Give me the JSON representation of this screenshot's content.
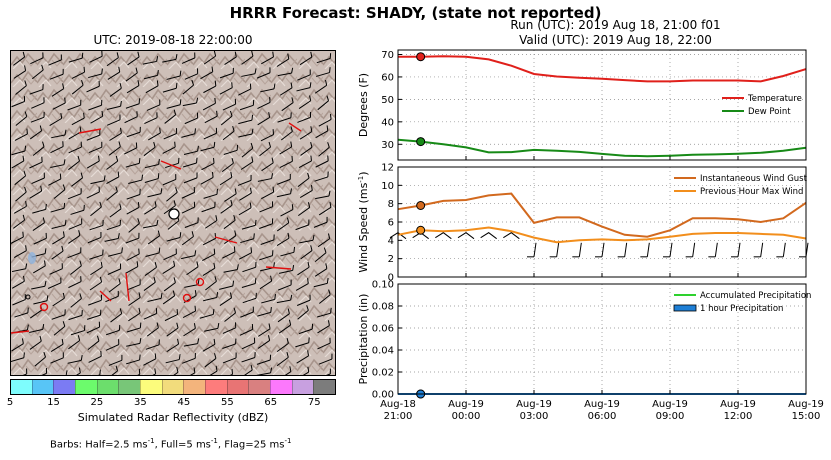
{
  "suptitle": "HRRR Forecast: SHADY, (state not reported)",
  "map": {
    "title": "UTC: 2019-08-18 22:00:00",
    "colorbar_ticks": [
      "5",
      "15",
      "25",
      "35",
      "45",
      "55",
      "65",
      "75"
    ],
    "colorbar_label": "Simulated Radar Reflectivity (dBZ)",
    "colorbar_colors": [
      "#7efdfd",
      "#58c5f6",
      "#7b7bf3",
      "#6cfb6c",
      "#6cde6c",
      "#78c678",
      "#fcfc7c",
      "#f2dc7c",
      "#f3b47c",
      "#fd7c7c",
      "#e87474",
      "#d98080",
      "#fc78fc",
      "#c8a0e0",
      "#7c7c7c"
    ],
    "barbs_note": "Barbs: Half=2.5 ms",
    "barbs_note_sup": "-1",
    "barbs_note_rest": ", Full=5 ms",
    "barbs_note_sup2": "-1",
    "barbs_note_tail": ", Flag=25 ms",
    "barbs_note_sup3": "-1"
  },
  "header": {
    "run": "Run (UTC): 2019 Aug 18, 21:00 f01",
    "valid": "Valid (UTC): 2019 Aug 18, 22:00"
  },
  "chart_data": [
    {
      "type": "line",
      "title": "",
      "ylabel": "Degrees (F)",
      "ylim": [
        23,
        72
      ],
      "yticks": [
        30,
        40,
        50,
        60,
        70
      ],
      "x": [
        "2019-08-18 21:00",
        "2019-08-18 22:00",
        "2019-08-18 23:00",
        "2019-08-19 00:00",
        "2019-08-19 01:00",
        "2019-08-19 02:00",
        "2019-08-19 03:00",
        "2019-08-19 04:00",
        "2019-08-19 05:00",
        "2019-08-19 06:00",
        "2019-08-19 07:00",
        "2019-08-19 08:00",
        "2019-08-19 09:00",
        "2019-08-19 10:00",
        "2019-08-19 11:00",
        "2019-08-19 12:00",
        "2019-08-19 13:00",
        "2019-08-19 14:00",
        "2019-08-19 15:00"
      ],
      "series": [
        {
          "name": "Temperature",
          "color": "#e0201b",
          "values": [
            69.0,
            69.0,
            69.2,
            69.0,
            67.8,
            65.0,
            61.3,
            60.2,
            59.6,
            59.2,
            58.6,
            58.0,
            58.0,
            58.4,
            58.4,
            58.4,
            58.0,
            60.4,
            63.5
          ]
        },
        {
          "name": "Dew Point",
          "color": "#178a17",
          "values": [
            32.0,
            31.2,
            30.0,
            28.6,
            26.4,
            26.5,
            27.5,
            27.1,
            26.6,
            25.7,
            24.9,
            24.7,
            24.9,
            25.3,
            25.5,
            25.8,
            26.2,
            27.1,
            28.5
          ]
        }
      ],
      "marker_index": 1,
      "legend_position": "right"
    },
    {
      "type": "line",
      "title": "",
      "ylabel": "Wind Speed (ms",
      "ylabel_sup": "-1",
      "ylabel_end": ")",
      "ylim": [
        0,
        12
      ],
      "yticks": [
        0,
        2,
        4,
        6,
        8,
        10,
        12
      ],
      "x_ref": 0,
      "series": [
        {
          "name": "Instantaneous Wind Gust",
          "color": "#d2691e",
          "values": [
            7.4,
            7.8,
            8.3,
            8.4,
            8.9,
            9.1,
            5.9,
            6.5,
            6.5,
            5.5,
            4.6,
            4.4,
            5.1,
            6.4,
            6.4,
            6.3,
            6.0,
            6.4,
            8.1
          ]
        },
        {
          "name": "Previous Hour Max Wind",
          "color": "#f28e1c",
          "values": [
            4.6,
            5.1,
            5.0,
            5.1,
            5.4,
            5.0,
            4.3,
            3.8,
            4.0,
            4.1,
            4.0,
            4.1,
            4.4,
            4.7,
            4.8,
            4.8,
            4.7,
            4.6,
            4.2
          ]
        }
      ],
      "marker_index": 1,
      "legend_position": "top-right"
    },
    {
      "type": "line",
      "title": "",
      "ylabel": "Precipitation (in)",
      "ylim": [
        0,
        0.1
      ],
      "yticks": [
        "0.00",
        "0.02",
        "0.04",
        "0.06",
        "0.08",
        "0.10"
      ],
      "series": [
        {
          "name": "Accumulated Precipitation",
          "color": "#2ed12e",
          "values": [
            0,
            0,
            0,
            0,
            0,
            0,
            0,
            0,
            0,
            0,
            0,
            0,
            0,
            0,
            0,
            0,
            0,
            0,
            0
          ]
        },
        {
          "name": "1 hour Precipitation",
          "color": "#1e7fd6",
          "values": [
            0,
            0,
            0,
            0,
            0,
            0,
            0,
            0,
            0,
            0,
            0,
            0,
            0,
            0,
            0,
            0,
            0,
            0,
            0
          ]
        }
      ],
      "marker_index": 1,
      "legend_position": "top-right"
    }
  ],
  "xticks": [
    {
      "line1": "Aug-18",
      "line2": "21:00"
    },
    {
      "line1": "Aug-19",
      "line2": "00:00"
    },
    {
      "line1": "Aug-19",
      "line2": "03:00"
    },
    {
      "line1": "Aug-19",
      "line2": "06:00"
    },
    {
      "line1": "Aug-19",
      "line2": "09:00"
    },
    {
      "line1": "Aug-19",
      "line2": "12:00"
    },
    {
      "line1": "Aug-19",
      "line2": "15:00"
    }
  ]
}
